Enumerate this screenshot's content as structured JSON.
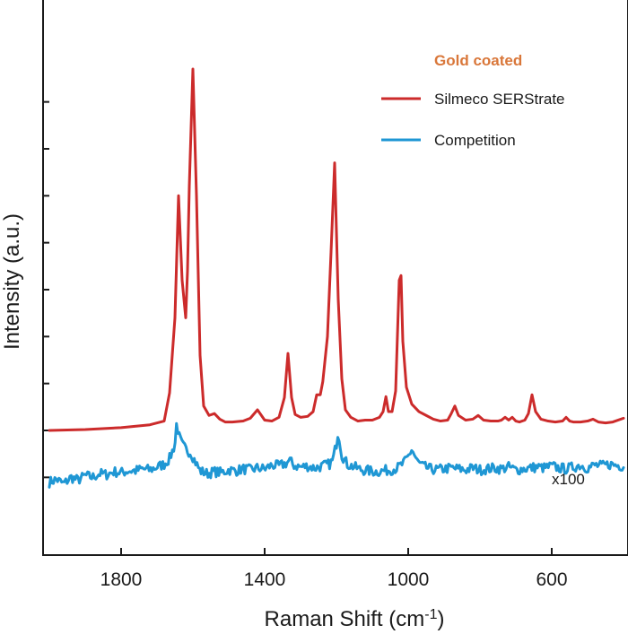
{
  "chart_data": {
    "type": "line",
    "title": "",
    "xlabel": "Raman Shift (cm",
    "xlabel_superscript": "-1",
    "xlabel_suffix": ")",
    "ylabel": "Intensity (a.u.)",
    "xlim": [
      2000,
      400
    ],
    "x_reversed": true,
    "ylim": [
      -0.65,
      4.15
    ],
    "x_ticks": [
      1800,
      1400,
      1000,
      600
    ],
    "x_tick_labels": [
      "1800",
      "1400",
      "1000",
      "600"
    ],
    "y_ticks": [
      -0.5,
      0.0,
      0.5,
      1.0,
      1.5,
      2.0,
      2.5,
      3.0,
      3.5
    ],
    "y_tick_labels_shown": false,
    "grid": false,
    "legend": {
      "title": "Gold coated",
      "title_color": "#d9773a",
      "position": "top-right"
    },
    "annotation": "x100",
    "series": [
      {
        "name": "Silmeco SERStrate",
        "color": "#cc2b2b",
        "x": [
          2000,
          1900,
          1800,
          1720,
          1680,
          1665,
          1650,
          1640,
          1630,
          1620,
          1615,
          1610,
          1600,
          1590,
          1580,
          1570,
          1555,
          1540,
          1525,
          1510,
          1490,
          1460,
          1440,
          1420,
          1400,
          1380,
          1360,
          1345,
          1335,
          1325,
          1315,
          1300,
          1280,
          1265,
          1255,
          1245,
          1238,
          1225,
          1215,
          1205,
          1195,
          1185,
          1175,
          1160,
          1140,
          1120,
          1100,
          1080,
          1070,
          1062,
          1055,
          1045,
          1035,
          1025,
          1020,
          1015,
          1005,
          990,
          970,
          950,
          930,
          910,
          890,
          880,
          870,
          860,
          840,
          820,
          805,
          790,
          770,
          750,
          740,
          730,
          720,
          710,
          700,
          690,
          675,
          665,
          655,
          645,
          630,
          610,
          590,
          570,
          560,
          550,
          540,
          520,
          500,
          485,
          470,
          450,
          430,
          400
        ],
        "values": [
          0.0,
          0.01,
          0.03,
          0.06,
          0.1,
          0.4,
          1.2,
          2.5,
          1.6,
          1.2,
          1.7,
          2.6,
          3.85,
          2.5,
          0.8,
          0.26,
          0.16,
          0.18,
          0.12,
          0.09,
          0.09,
          0.1,
          0.13,
          0.22,
          0.11,
          0.1,
          0.14,
          0.35,
          0.82,
          0.35,
          0.17,
          0.14,
          0.15,
          0.2,
          0.38,
          0.38,
          0.52,
          1.0,
          1.9,
          2.85,
          1.4,
          0.55,
          0.22,
          0.14,
          0.1,
          0.11,
          0.11,
          0.14,
          0.2,
          0.36,
          0.2,
          0.2,
          0.42,
          1.6,
          1.65,
          0.95,
          0.46,
          0.28,
          0.2,
          0.16,
          0.12,
          0.1,
          0.11,
          0.18,
          0.26,
          0.16,
          0.11,
          0.12,
          0.16,
          0.11,
          0.1,
          0.1,
          0.11,
          0.14,
          0.11,
          0.14,
          0.1,
          0.09,
          0.11,
          0.18,
          0.38,
          0.2,
          0.12,
          0.1,
          0.09,
          0.1,
          0.14,
          0.1,
          0.09,
          0.09,
          0.1,
          0.12,
          0.09,
          0.08,
          0.09,
          0.13
        ]
      },
      {
        "name": "Competition",
        "color": "#1f97d4",
        "x": [
          2000,
          1980,
          1960,
          1940,
          1920,
          1900,
          1880,
          1860,
          1840,
          1820,
          1800,
          1780,
          1760,
          1740,
          1720,
          1700,
          1680,
          1665,
          1650,
          1645,
          1640,
          1630,
          1620,
          1605,
          1595,
          1580,
          1560,
          1540,
          1520,
          1500,
          1480,
          1460,
          1440,
          1420,
          1400,
          1380,
          1360,
          1340,
          1330,
          1320,
          1300,
          1280,
          1260,
          1240,
          1220,
          1210,
          1200,
          1195,
          1185,
          1170,
          1150,
          1130,
          1110,
          1090,
          1070,
          1050,
          1030,
          1010,
          1000,
          990,
          975,
          960,
          940,
          920,
          900,
          880,
          860,
          840,
          820,
          800,
          780,
          760,
          740,
          720,
          700,
          680,
          660,
          640,
          620,
          600,
          580,
          560,
          540,
          520,
          500,
          480,
          460,
          440,
          420,
          400
        ],
        "values": [
          -0.55,
          -0.52,
          -0.57,
          -0.5,
          -0.53,
          -0.48,
          -0.5,
          -0.46,
          -0.47,
          -0.44,
          -0.45,
          -0.43,
          -0.43,
          -0.41,
          -0.42,
          -0.39,
          -0.36,
          -0.3,
          -0.15,
          0.1,
          -0.05,
          -0.15,
          -0.2,
          -0.24,
          -0.32,
          -0.43,
          -0.46,
          -0.44,
          -0.45,
          -0.42,
          -0.43,
          -0.41,
          -0.42,
          -0.4,
          -0.41,
          -0.37,
          -0.38,
          -0.35,
          -0.32,
          -0.37,
          -0.39,
          -0.38,
          -0.4,
          -0.38,
          -0.36,
          -0.32,
          -0.14,
          0.0,
          -0.26,
          -0.36,
          -0.39,
          -0.42,
          -0.43,
          -0.44,
          -0.43,
          -0.42,
          -0.4,
          -0.34,
          -0.28,
          -0.2,
          -0.33,
          -0.38,
          -0.41,
          -0.42,
          -0.41,
          -0.4,
          -0.41,
          -0.42,
          -0.4,
          -0.42,
          -0.41,
          -0.4,
          -0.41,
          -0.39,
          -0.42,
          -0.41,
          -0.4,
          -0.39,
          -0.4,
          -0.38,
          -0.4,
          -0.41,
          -0.39,
          -0.37,
          -0.4,
          -0.37,
          -0.38,
          -0.36,
          -0.37,
          -0.38
        ],
        "noise": 0.055
      }
    ]
  }
}
